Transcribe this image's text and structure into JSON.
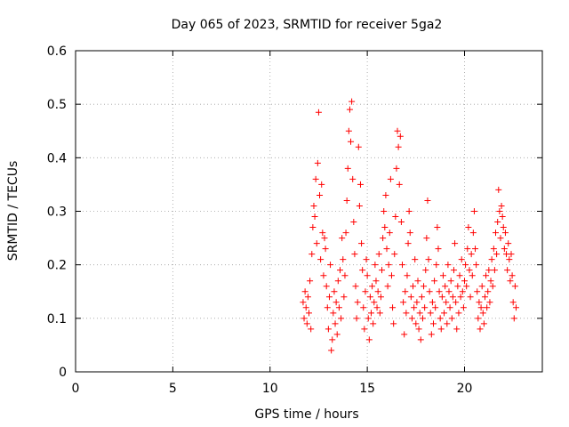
{
  "chart_data": {
    "type": "scatter",
    "title": "Day 065 of 2023, SRMTID for receiver 5ga2",
    "xlabel": "GPS time / hours",
    "ylabel": "SRMTID / TECUs",
    "xlim": [
      0,
      24
    ],
    "ylim": [
      0,
      0.6
    ],
    "xticks": [
      0,
      5,
      10,
      15,
      20
    ],
    "yticks": [
      0,
      0.1,
      0.2,
      0.3,
      0.4,
      0.5,
      0.6
    ],
    "xtick_labels": [
      "0",
      "5",
      "10",
      "15",
      "20"
    ],
    "ytick_labels": [
      "0",
      "0.1",
      "0.2",
      "0.3",
      "0.4",
      "0.5",
      "0.6"
    ],
    "grid": true,
    "marker": "+",
    "color": "#ff0000",
    "series": [
      {
        "name": "SRMTID",
        "points": [
          [
            11.7,
            0.13
          ],
          [
            11.75,
            0.1
          ],
          [
            11.8,
            0.15
          ],
          [
            11.85,
            0.12
          ],
          [
            11.9,
            0.09
          ],
          [
            11.95,
            0.14
          ],
          [
            12.0,
            0.11
          ],
          [
            12.05,
            0.17
          ],
          [
            12.1,
            0.08
          ],
          [
            12.15,
            0.22
          ],
          [
            12.2,
            0.27
          ],
          [
            12.25,
            0.31
          ],
          [
            12.3,
            0.29
          ],
          [
            12.35,
            0.36
          ],
          [
            12.4,
            0.24
          ],
          [
            12.45,
            0.39
          ],
          [
            12.5,
            0.485
          ],
          [
            12.55,
            0.33
          ],
          [
            12.6,
            0.21
          ],
          [
            12.65,
            0.35
          ],
          [
            12.7,
            0.26
          ],
          [
            12.75,
            0.18
          ],
          [
            12.8,
            0.25
          ],
          [
            12.85,
            0.23
          ],
          [
            12.9,
            0.16
          ],
          [
            12.95,
            0.12
          ],
          [
            13.0,
            0.08
          ],
          [
            13.05,
            0.14
          ],
          [
            13.1,
            0.2
          ],
          [
            13.15,
            0.04
          ],
          [
            13.2,
            0.06
          ],
          [
            13.25,
            0.11
          ],
          [
            13.3,
            0.15
          ],
          [
            13.35,
            0.09
          ],
          [
            13.4,
            0.13
          ],
          [
            13.45,
            0.07
          ],
          [
            13.5,
            0.17
          ],
          [
            13.55,
            0.12
          ],
          [
            13.6,
            0.19
          ],
          [
            13.65,
            0.1
          ],
          [
            13.7,
            0.25
          ],
          [
            13.75,
            0.21
          ],
          [
            13.8,
            0.14
          ],
          [
            13.85,
            0.18
          ],
          [
            13.9,
            0.26
          ],
          [
            13.95,
            0.32
          ],
          [
            14.0,
            0.38
          ],
          [
            14.05,
            0.45
          ],
          [
            14.1,
            0.49
          ],
          [
            14.15,
            0.43
          ],
          [
            14.2,
            0.505
          ],
          [
            14.25,
            0.36
          ],
          [
            14.3,
            0.28
          ],
          [
            14.35,
            0.22
          ],
          [
            14.4,
            0.16
          ],
          [
            14.45,
            0.1
          ],
          [
            14.5,
            0.13
          ],
          [
            14.55,
            0.42
          ],
          [
            14.6,
            0.31
          ],
          [
            14.65,
            0.35
          ],
          [
            14.7,
            0.24
          ],
          [
            14.75,
            0.19
          ],
          [
            14.8,
            0.12
          ],
          [
            14.85,
            0.08
          ],
          [
            14.9,
            0.15
          ],
          [
            14.95,
            0.21
          ],
          [
            15.0,
            0.18
          ],
          [
            15.05,
            0.1
          ],
          [
            15.1,
            0.06
          ],
          [
            15.15,
            0.14
          ],
          [
            15.2,
            0.11
          ],
          [
            15.25,
            0.16
          ],
          [
            15.3,
            0.09
          ],
          [
            15.35,
            0.13
          ],
          [
            15.4,
            0.2
          ],
          [
            15.45,
            0.17
          ],
          [
            15.5,
            0.12
          ],
          [
            15.55,
            0.15
          ],
          [
            15.6,
            0.22
          ],
          [
            15.65,
            0.11
          ],
          [
            15.7,
            0.14
          ],
          [
            15.75,
            0.19
          ],
          [
            15.8,
            0.25
          ],
          [
            15.85,
            0.3
          ],
          [
            15.9,
            0.27
          ],
          [
            15.95,
            0.33
          ],
          [
            16.0,
            0.23
          ],
          [
            16.05,
            0.16
          ],
          [
            16.1,
            0.2
          ],
          [
            16.15,
            0.26
          ],
          [
            16.2,
            0.36
          ],
          [
            16.25,
            0.18
          ],
          [
            16.3,
            0.12
          ],
          [
            16.35,
            0.09
          ],
          [
            16.4,
            0.22
          ],
          [
            16.45,
            0.29
          ],
          [
            16.5,
            0.38
          ],
          [
            16.55,
            0.45
          ],
          [
            16.6,
            0.42
          ],
          [
            16.65,
            0.35
          ],
          [
            16.7,
            0.44
          ],
          [
            16.75,
            0.28
          ],
          [
            16.8,
            0.2
          ],
          [
            16.85,
            0.13
          ],
          [
            16.9,
            0.07
          ],
          [
            16.95,
            0.15
          ],
          [
            17.0,
            0.11
          ],
          [
            17.05,
            0.18
          ],
          [
            17.1,
            0.24
          ],
          [
            17.15,
            0.3
          ],
          [
            17.2,
            0.26
          ],
          [
            17.25,
            0.14
          ],
          [
            17.3,
            0.1
          ],
          [
            17.35,
            0.16
          ],
          [
            17.4,
            0.12
          ],
          [
            17.45,
            0.21
          ],
          [
            17.5,
            0.09
          ],
          [
            17.55,
            0.13
          ],
          [
            17.6,
            0.17
          ],
          [
            17.65,
            0.08
          ],
          [
            17.7,
            0.11
          ],
          [
            17.75,
            0.06
          ],
          [
            17.8,
            0.14
          ],
          [
            17.85,
            0.1
          ],
          [
            17.9,
            0.16
          ],
          [
            17.95,
            0.12
          ],
          [
            18.0,
            0.19
          ],
          [
            18.05,
            0.25
          ],
          [
            18.1,
            0.32
          ],
          [
            18.15,
            0.21
          ],
          [
            18.2,
            0.15
          ],
          [
            18.25,
            0.11
          ],
          [
            18.3,
            0.07
          ],
          [
            18.35,
            0.13
          ],
          [
            18.4,
            0.09
          ],
          [
            18.45,
            0.17
          ],
          [
            18.5,
            0.12
          ],
          [
            18.55,
            0.2
          ],
          [
            18.6,
            0.27
          ],
          [
            18.65,
            0.23
          ],
          [
            18.7,
            0.15
          ],
          [
            18.75,
            0.1
          ],
          [
            18.8,
            0.08
          ],
          [
            18.85,
            0.14
          ],
          [
            18.9,
            0.18
          ],
          [
            18.95,
            0.11
          ],
          [
            19.0,
            0.16
          ],
          [
            19.05,
            0.13
          ],
          [
            19.1,
            0.09
          ],
          [
            19.15,
            0.2
          ],
          [
            19.2,
            0.15
          ],
          [
            19.25,
            0.12
          ],
          [
            19.3,
            0.17
          ],
          [
            19.35,
            0.1
          ],
          [
            19.4,
            0.14
          ],
          [
            19.45,
            0.19
          ],
          [
            19.5,
            0.24
          ],
          [
            19.55,
            0.13
          ],
          [
            19.6,
            0.08
          ],
          [
            19.65,
            0.16
          ],
          [
            19.7,
            0.11
          ],
          [
            19.75,
            0.18
          ],
          [
            19.8,
            0.14
          ],
          [
            19.85,
            0.21
          ],
          [
            19.9,
            0.15
          ],
          [
            19.95,
            0.12
          ],
          [
            20.0,
            0.17
          ],
          [
            20.05,
            0.2
          ],
          [
            20.1,
            0.16
          ],
          [
            20.15,
            0.23
          ],
          [
            20.2,
            0.27
          ],
          [
            20.25,
            0.19
          ],
          [
            20.3,
            0.14
          ],
          [
            20.35,
            0.22
          ],
          [
            20.4,
            0.18
          ],
          [
            20.45,
            0.26
          ],
          [
            20.5,
            0.3
          ],
          [
            20.55,
            0.23
          ],
          [
            20.6,
            0.2
          ],
          [
            20.65,
            0.15
          ],
          [
            20.7,
            0.1
          ],
          [
            20.75,
            0.13
          ],
          [
            20.8,
            0.08
          ],
          [
            20.85,
            0.12
          ],
          [
            20.9,
            0.16
          ],
          [
            20.95,
            0.11
          ],
          [
            21.0,
            0.09
          ],
          [
            21.05,
            0.14
          ],
          [
            21.1,
            0.18
          ],
          [
            21.15,
            0.12
          ],
          [
            21.2,
            0.15
          ],
          [
            21.25,
            0.19
          ],
          [
            21.3,
            0.13
          ],
          [
            21.35,
            0.17
          ],
          [
            21.4,
            0.21
          ],
          [
            21.45,
            0.16
          ],
          [
            21.5,
            0.23
          ],
          [
            21.55,
            0.19
          ],
          [
            21.6,
            0.26
          ],
          [
            21.65,
            0.22
          ],
          [
            21.7,
            0.28
          ],
          [
            21.75,
            0.34
          ],
          [
            21.8,
            0.3
          ],
          [
            21.85,
            0.25
          ],
          [
            21.9,
            0.31
          ],
          [
            21.95,
            0.29
          ],
          [
            22.0,
            0.27
          ],
          [
            22.05,
            0.23
          ],
          [
            22.1,
            0.26
          ],
          [
            22.15,
            0.22
          ],
          [
            22.2,
            0.19
          ],
          [
            22.25,
            0.24
          ],
          [
            22.3,
            0.21
          ],
          [
            22.35,
            0.17
          ],
          [
            22.4,
            0.22
          ],
          [
            22.45,
            0.18
          ],
          [
            22.5,
            0.13
          ],
          [
            22.55,
            0.1
          ],
          [
            22.6,
            0.16
          ],
          [
            22.65,
            0.12
          ]
        ]
      }
    ]
  }
}
